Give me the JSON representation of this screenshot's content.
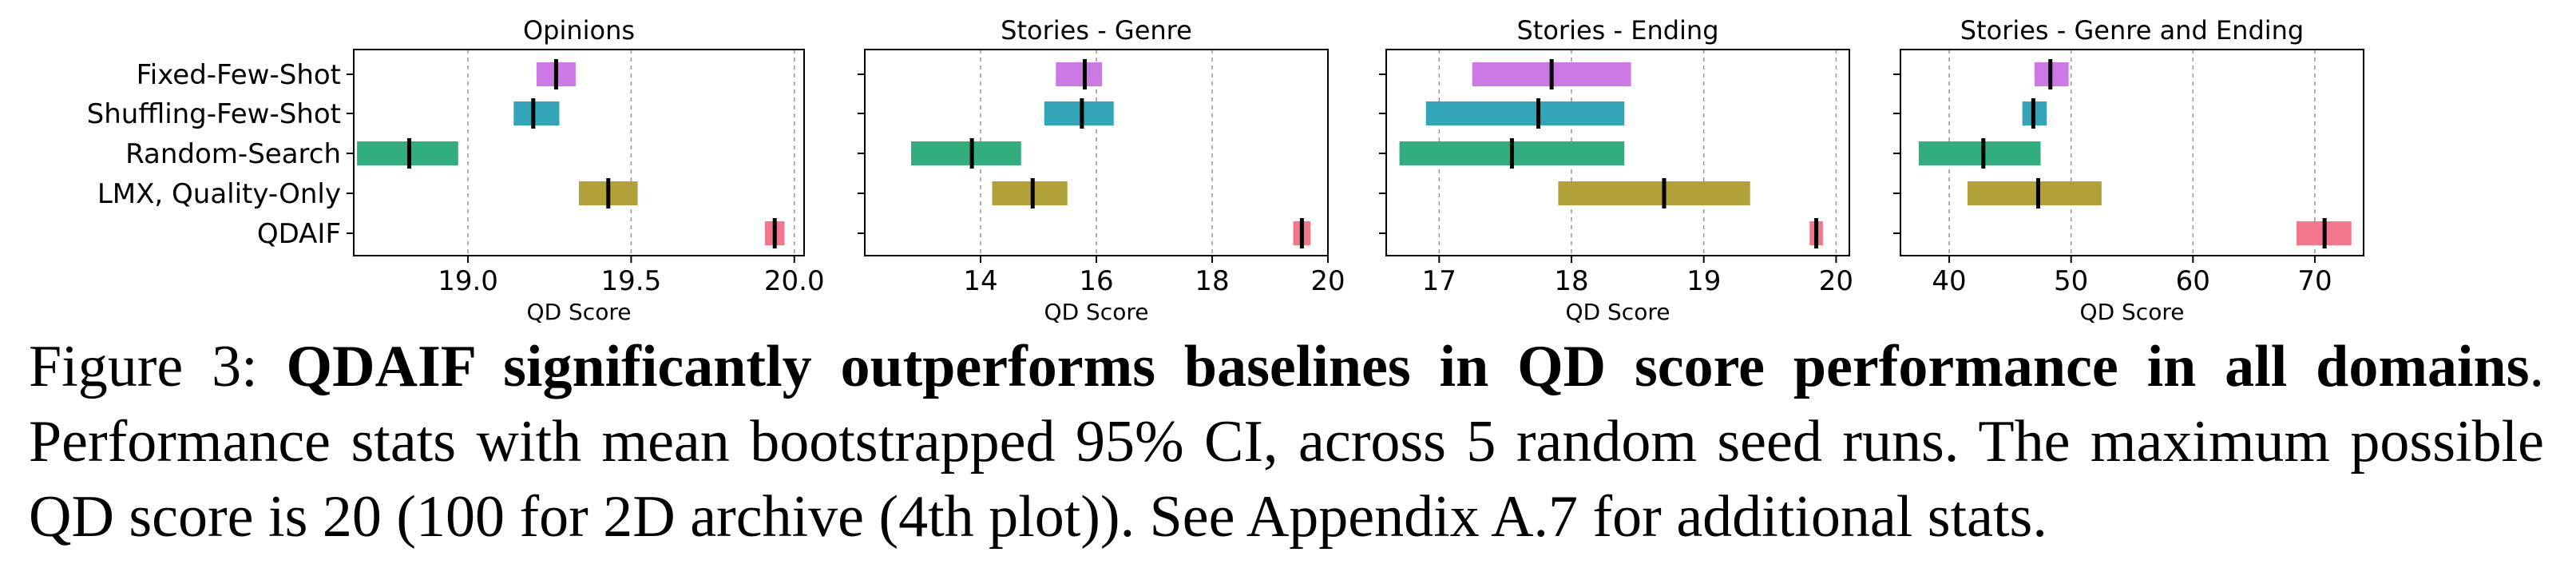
{
  "chart_data": [
    {
      "type": "range-interval",
      "title": "Opinions",
      "xlabel": "QD Score",
      "categories": [
        "Fixed-Few-Shot",
        "Shuffling-Few-Shot",
        "Random-Search",
        "LMX, Quality-Only",
        "QDAIF"
      ],
      "xlim": [
        18.65,
        20.03
      ],
      "xticks": [
        "19.0",
        "19.5",
        "20.0"
      ],
      "grid": "vertical dashed at ticks",
      "series": [
        {
          "category": "Fixed-Few-Shot",
          "mean": 19.27,
          "low": 19.21,
          "high": 19.33,
          "color": "#cc79e6"
        },
        {
          "category": "Shuffling-Few-Shot",
          "mean": 19.2,
          "low": 19.14,
          "high": 19.28,
          "color": "#33a5b8"
        },
        {
          "category": "Random-Search",
          "mean": 18.82,
          "low": 18.66,
          "high": 18.97,
          "color": "#32ae7e"
        },
        {
          "category": "LMX, Quality-Only",
          "mean": 19.43,
          "low": 19.34,
          "high": 19.52,
          "color": "#b2a138"
        },
        {
          "category": "QDAIF",
          "mean": 19.94,
          "low": 19.91,
          "high": 19.97,
          "color": "#f2778b"
        }
      ]
    },
    {
      "type": "range-interval",
      "title": "Stories - Genre",
      "xlabel": "QD Score",
      "categories": [
        "Fixed-Few-Shot",
        "Shuffling-Few-Shot",
        "Random-Search",
        "LMX, Quality-Only",
        "QDAIF"
      ],
      "xlim": [
        12.0,
        20.0
      ],
      "xticks": [
        "14",
        "16",
        "18",
        "20"
      ],
      "grid": "vertical dashed at ticks",
      "series": [
        {
          "category": "Fixed-Few-Shot",
          "mean": 15.8,
          "low": 15.3,
          "high": 16.1,
          "color": "#cc79e6"
        },
        {
          "category": "Shuffling-Few-Shot",
          "mean": 15.75,
          "low": 15.1,
          "high": 16.3,
          "color": "#33a5b8"
        },
        {
          "category": "Random-Search",
          "mean": 13.85,
          "low": 12.8,
          "high": 14.7,
          "color": "#32ae7e"
        },
        {
          "category": "LMX, Quality-Only",
          "mean": 14.9,
          "low": 14.2,
          "high": 15.5,
          "color": "#b2a138"
        },
        {
          "category": "QDAIF",
          "mean": 19.55,
          "low": 19.4,
          "high": 19.7,
          "color": "#f2778b"
        }
      ]
    },
    {
      "type": "range-interval",
      "title": "Stories - Ending",
      "xlabel": "QD Score",
      "categories": [
        "Fixed-Few-Shot",
        "Shuffling-Few-Shot",
        "Random-Search",
        "LMX, Quality-Only",
        "QDAIF"
      ],
      "xlim": [
        16.6,
        20.1
      ],
      "xticks": [
        "17",
        "18",
        "19",
        "20"
      ],
      "grid": "vertical dashed at ticks",
      "series": [
        {
          "category": "Fixed-Few-Shot",
          "mean": 17.85,
          "low": 17.25,
          "high": 18.45,
          "color": "#cc79e6"
        },
        {
          "category": "Shuffling-Few-Shot",
          "mean": 17.75,
          "low": 16.9,
          "high": 18.4,
          "color": "#33a5b8"
        },
        {
          "category": "Random-Search",
          "mean": 17.55,
          "low": 16.7,
          "high": 18.4,
          "color": "#32ae7e"
        },
        {
          "category": "LMX, Quality-Only",
          "mean": 18.7,
          "low": 17.9,
          "high": 19.35,
          "color": "#b2a138"
        },
        {
          "category": "QDAIF",
          "mean": 19.85,
          "low": 19.8,
          "high": 19.9,
          "color": "#f2778b"
        }
      ]
    },
    {
      "type": "range-interval",
      "title": "Stories - Genre and Ending",
      "xlabel": "QD Score",
      "categories": [
        "Fixed-Few-Shot",
        "Shuffling-Few-Shot",
        "Random-Search",
        "LMX, Quality-Only",
        "QDAIF"
      ],
      "xlim": [
        36,
        74
      ],
      "xticks": [
        "40",
        "50",
        "60",
        "70"
      ],
      "grid": "vertical dashed at ticks",
      "series": [
        {
          "category": "Fixed-Few-Shot",
          "mean": 48.3,
          "low": 47.0,
          "high": 49.8,
          "color": "#cc79e6"
        },
        {
          "category": "Shuffling-Few-Shot",
          "mean": 46.9,
          "low": 46.0,
          "high": 48.0,
          "color": "#33a5b8"
        },
        {
          "category": "Random-Search",
          "mean": 42.8,
          "low": 37.5,
          "high": 47.5,
          "color": "#32ae7e"
        },
        {
          "category": "LMX, Quality-Only",
          "mean": 47.3,
          "low": 41.5,
          "high": 52.5,
          "color": "#b2a138"
        },
        {
          "category": "QDAIF",
          "mean": 70.8,
          "low": 68.5,
          "high": 73.0,
          "color": "#f2778b"
        }
      ]
    }
  ],
  "caption": {
    "figure_label": "Figure 3: ",
    "bold_text": "QDAIF significantly outperforms baselines in QD score performance in all domains",
    "after_bold": ". Performance stats with mean bootstrapped 95% CI, across 5 random seed runs.  The maximum possible QD score is 20 (100 for 2D archive (4th plot)). See Appendix A.7 for additional stats."
  }
}
